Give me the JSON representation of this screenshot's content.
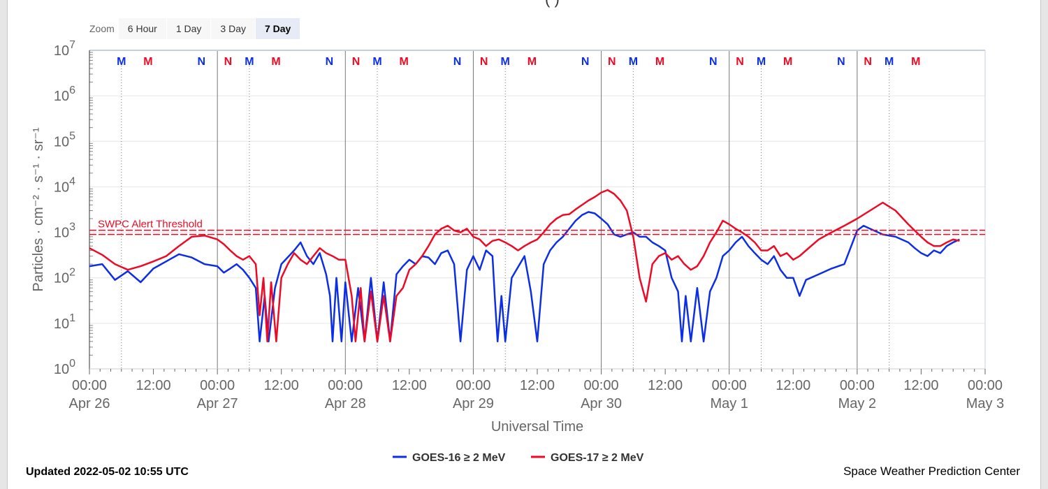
{
  "header": {
    "title_fragment": "( )"
  },
  "zoom": {
    "label": "Zoom",
    "buttons": [
      "6 Hour",
      "1 Day",
      "3 Day",
      "7 Day"
    ],
    "active": "7 Day"
  },
  "footer": {
    "updated": "Updated 2022-05-02 10:55 UTC",
    "credit": "Space Weather Prediction Center"
  },
  "colors": {
    "goes16": "#0b2ee6",
    "goes17": "#ee0a24",
    "grid": "#e6e6e6",
    "threshold": "#ee0a24"
  },
  "chart_data": {
    "type": "line",
    "xlabel": "Universal Time",
    "ylabel": "Particles · cm⁻² · s⁻¹ · sr⁻¹",
    "yscale": "log",
    "ylim": [
      1,
      10000000
    ],
    "y_ticks": [
      {
        "base": "10",
        "exp": "0"
      },
      {
        "base": "10",
        "exp": "1"
      },
      {
        "base": "10",
        "exp": "2"
      },
      {
        "base": "10",
        "exp": "3"
      },
      {
        "base": "10",
        "exp": "4"
      },
      {
        "base": "10",
        "exp": "5"
      },
      {
        "base": "10",
        "exp": "6"
      },
      {
        "base": "10",
        "exp": "7"
      }
    ],
    "xlim_days": [
      0,
      7
    ],
    "x_ticks": [
      {
        "time": "00:00",
        "date": "Apr 26"
      },
      {
        "time": "12:00",
        "date": ""
      },
      {
        "time": "00:00",
        "date": "Apr 27"
      },
      {
        "time": "12:00",
        "date": ""
      },
      {
        "time": "00:00",
        "date": "Apr 28"
      },
      {
        "time": "12:00",
        "date": ""
      },
      {
        "time": "00:00",
        "date": "Apr 29"
      },
      {
        "time": "12:00",
        "date": ""
      },
      {
        "time": "00:00",
        "date": "Apr 30"
      },
      {
        "time": "12:00",
        "date": ""
      },
      {
        "time": "00:00",
        "date": "May 1"
      },
      {
        "time": "12:00",
        "date": ""
      },
      {
        "time": "00:00",
        "date": "May 2"
      },
      {
        "time": "12:00",
        "date": ""
      },
      {
        "time": "00:00",
        "date": "May 3"
      }
    ],
    "threshold": {
      "label": "SWPC Alert Threshold",
      "value": 1000
    },
    "markers": {
      "m_dotted_offsets_hours": [
        6,
        6,
        6,
        6,
        6,
        6,
        6
      ],
      "entries": [
        {
          "day": 0,
          "hour": 6,
          "text": "M",
          "color": "goes16"
        },
        {
          "day": 0,
          "hour": 11,
          "text": "M",
          "color": "goes17"
        },
        {
          "day": 0,
          "hour": 21,
          "text": "N",
          "color": "goes16"
        },
        {
          "day": 1,
          "hour": 2,
          "text": "N",
          "color": "goes17"
        },
        {
          "day": 1,
          "hour": 6,
          "text": "M",
          "color": "goes16"
        },
        {
          "day": 1,
          "hour": 11,
          "text": "M",
          "color": "goes17"
        },
        {
          "day": 1,
          "hour": 21,
          "text": "N",
          "color": "goes16"
        },
        {
          "day": 2,
          "hour": 2,
          "text": "N",
          "color": "goes17"
        },
        {
          "day": 2,
          "hour": 6,
          "text": "M",
          "color": "goes16"
        },
        {
          "day": 2,
          "hour": 11,
          "text": "M",
          "color": "goes17"
        },
        {
          "day": 2,
          "hour": 21,
          "text": "N",
          "color": "goes16"
        },
        {
          "day": 3,
          "hour": 2,
          "text": "N",
          "color": "goes17"
        },
        {
          "day": 3,
          "hour": 6,
          "text": "M",
          "color": "goes16"
        },
        {
          "day": 3,
          "hour": 11,
          "text": "M",
          "color": "goes17"
        },
        {
          "day": 3,
          "hour": 21,
          "text": "N",
          "color": "goes16"
        },
        {
          "day": 4,
          "hour": 2,
          "text": "N",
          "color": "goes17"
        },
        {
          "day": 4,
          "hour": 6,
          "text": "M",
          "color": "goes16"
        },
        {
          "day": 4,
          "hour": 11,
          "text": "M",
          "color": "goes17"
        },
        {
          "day": 4,
          "hour": 21,
          "text": "N",
          "color": "goes16"
        },
        {
          "day": 5,
          "hour": 2,
          "text": "N",
          "color": "goes17"
        },
        {
          "day": 5,
          "hour": 6,
          "text": "M",
          "color": "goes16"
        },
        {
          "day": 5,
          "hour": 11,
          "text": "M",
          "color": "goes17"
        },
        {
          "day": 5,
          "hour": 21,
          "text": "N",
          "color": "goes16"
        },
        {
          "day": 6,
          "hour": 2,
          "text": "N",
          "color": "goes17"
        },
        {
          "day": 6,
          "hour": 6,
          "text": "M",
          "color": "goes16"
        },
        {
          "day": 6,
          "hour": 11,
          "text": "M",
          "color": "goes17"
        }
      ]
    },
    "legend_placement": "bottom-center",
    "series": [
      {
        "name": "GOES-16 ≥ 2 MeV",
        "color": "goes16",
        "points": [
          [
            0.0,
            180
          ],
          [
            0.1,
            200
          ],
          [
            0.2,
            90
          ],
          [
            0.3,
            140
          ],
          [
            0.4,
            80
          ],
          [
            0.5,
            160
          ],
          [
            0.6,
            230
          ],
          [
            0.7,
            330
          ],
          [
            0.8,
            280
          ],
          [
            0.9,
            200
          ],
          [
            1.0,
            180
          ],
          [
            1.05,
            130
          ],
          [
            1.1,
            160
          ],
          [
            1.15,
            200
          ],
          [
            1.2,
            150
          ],
          [
            1.25,
            100
          ],
          [
            1.3,
            60
          ],
          [
            1.33,
            4
          ],
          [
            1.37,
            40
          ],
          [
            1.4,
            4
          ],
          [
            1.45,
            60
          ],
          [
            1.5,
            200
          ],
          [
            1.6,
            400
          ],
          [
            1.65,
            600
          ],
          [
            1.7,
            300
          ],
          [
            1.75,
            200
          ],
          [
            1.8,
            350
          ],
          [
            1.85,
            120
          ],
          [
            1.88,
            40
          ],
          [
            1.9,
            4
          ],
          [
            1.93,
            100
          ],
          [
            1.97,
            4
          ],
          [
            2.0,
            80
          ],
          [
            2.05,
            4
          ],
          [
            2.1,
            60
          ],
          [
            2.15,
            4
          ],
          [
            2.2,
            100
          ],
          [
            2.25,
            4
          ],
          [
            2.3,
            80
          ],
          [
            2.35,
            4
          ],
          [
            2.4,
            120
          ],
          [
            2.45,
            180
          ],
          [
            2.5,
            250
          ],
          [
            2.55,
            200
          ],
          [
            2.6,
            300
          ],
          [
            2.65,
            280
          ],
          [
            2.7,
            200
          ],
          [
            2.75,
            350
          ],
          [
            2.8,
            400
          ],
          [
            2.85,
            200
          ],
          [
            2.9,
            4
          ],
          [
            2.95,
            150
          ],
          [
            3.0,
            300
          ],
          [
            3.05,
            150
          ],
          [
            3.1,
            400
          ],
          [
            3.15,
            300
          ],
          [
            3.17,
            30
          ],
          [
            3.19,
            4
          ],
          [
            3.22,
            40
          ],
          [
            3.25,
            4
          ],
          [
            3.3,
            100
          ],
          [
            3.4,
            300
          ],
          [
            3.45,
            50
          ],
          [
            3.5,
            4
          ],
          [
            3.55,
            200
          ],
          [
            3.6,
            400
          ],
          [
            3.65,
            600
          ],
          [
            3.7,
            800
          ],
          [
            3.75,
            1200
          ],
          [
            3.8,
            1800
          ],
          [
            3.85,
            2400
          ],
          [
            3.9,
            2800
          ],
          [
            3.95,
            2600
          ],
          [
            4.0,
            2000
          ],
          [
            4.05,
            1500
          ],
          [
            4.1,
            900
          ],
          [
            4.15,
            800
          ],
          [
            4.2,
            900
          ],
          [
            4.25,
            1000
          ],
          [
            4.3,
            800
          ],
          [
            4.35,
            800
          ],
          [
            4.4,
            600
          ],
          [
            4.45,
            500
          ],
          [
            4.5,
            400
          ],
          [
            4.55,
            100
          ],
          [
            4.6,
            50
          ],
          [
            4.63,
            4
          ],
          [
            4.66,
            40
          ],
          [
            4.7,
            4
          ],
          [
            4.75,
            60
          ],
          [
            4.8,
            4
          ],
          [
            4.85,
            50
          ],
          [
            4.9,
            100
          ],
          [
            4.95,
            300
          ],
          [
            5.0,
            400
          ],
          [
            5.05,
            600
          ],
          [
            5.1,
            800
          ],
          [
            5.15,
            500
          ],
          [
            5.2,
            350
          ],
          [
            5.25,
            250
          ],
          [
            5.3,
            200
          ],
          [
            5.35,
            300
          ],
          [
            5.4,
            150
          ],
          [
            5.45,
            100
          ],
          [
            5.5,
            100
          ],
          [
            5.55,
            40
          ],
          [
            5.6,
            90
          ],
          [
            5.7,
            120
          ],
          [
            5.8,
            160
          ],
          [
            5.9,
            200
          ],
          [
            6.0,
            1100
          ],
          [
            6.05,
            1400
          ],
          [
            6.1,
            1200
          ],
          [
            6.2,
            900
          ],
          [
            6.3,
            800
          ],
          [
            6.4,
            600
          ],
          [
            6.45,
            450
          ],
          [
            6.5,
            350
          ],
          [
            6.55,
            300
          ],
          [
            6.6,
            400
          ],
          [
            6.65,
            350
          ],
          [
            6.7,
            500
          ],
          [
            6.75,
            600
          ],
          [
            6.8,
            700
          ]
        ]
      },
      {
        "name": "GOES-17 ≥ 2 MeV",
        "color": "goes17",
        "points": [
          [
            0.0,
            450
          ],
          [
            0.1,
            320
          ],
          [
            0.2,
            200
          ],
          [
            0.3,
            150
          ],
          [
            0.4,
            180
          ],
          [
            0.5,
            230
          ],
          [
            0.6,
            300
          ],
          [
            0.7,
            500
          ],
          [
            0.8,
            800
          ],
          [
            0.9,
            850
          ],
          [
            1.0,
            700
          ],
          [
            1.05,
            550
          ],
          [
            1.1,
            400
          ],
          [
            1.15,
            300
          ],
          [
            1.2,
            250
          ],
          [
            1.25,
            300
          ],
          [
            1.3,
            200
          ],
          [
            1.33,
            15
          ],
          [
            1.36,
            100
          ],
          [
            1.39,
            4
          ],
          [
            1.42,
            80
          ],
          [
            1.46,
            4
          ],
          [
            1.5,
            100
          ],
          [
            1.55,
            200
          ],
          [
            1.6,
            350
          ],
          [
            1.65,
            250
          ],
          [
            1.7,
            200
          ],
          [
            1.75,
            300
          ],
          [
            1.8,
            450
          ],
          [
            1.85,
            350
          ],
          [
            1.9,
            300
          ],
          [
            1.95,
            250
          ],
          [
            2.0,
            250
          ],
          [
            2.05,
            40
          ],
          [
            2.08,
            4
          ],
          [
            2.12,
            60
          ],
          [
            2.15,
            4
          ],
          [
            2.2,
            50
          ],
          [
            2.25,
            4
          ],
          [
            2.3,
            40
          ],
          [
            2.35,
            4
          ],
          [
            2.4,
            40
          ],
          [
            2.45,
            60
          ],
          [
            2.5,
            150
          ],
          [
            2.55,
            200
          ],
          [
            2.6,
            300
          ],
          [
            2.65,
            500
          ],
          [
            2.7,
            900
          ],
          [
            2.75,
            1200
          ],
          [
            2.8,
            1400
          ],
          [
            2.85,
            1100
          ],
          [
            2.9,
            1000
          ],
          [
            2.95,
            1200
          ],
          [
            3.0,
            800
          ],
          [
            3.05,
            700
          ],
          [
            3.1,
            500
          ],
          [
            3.15,
            650
          ],
          [
            3.2,
            700
          ],
          [
            3.25,
            600
          ],
          [
            3.3,
            500
          ],
          [
            3.35,
            400
          ],
          [
            3.4,
            500
          ],
          [
            3.45,
            600
          ],
          [
            3.5,
            700
          ],
          [
            3.55,
            1000
          ],
          [
            3.6,
            1500
          ],
          [
            3.65,
            2000
          ],
          [
            3.7,
            2400
          ],
          [
            3.75,
            2500
          ],
          [
            3.8,
            3200
          ],
          [
            3.85,
            4000
          ],
          [
            3.9,
            5000
          ],
          [
            3.95,
            6000
          ],
          [
            4.0,
            7500
          ],
          [
            4.05,
            8500
          ],
          [
            4.1,
            7000
          ],
          [
            4.15,
            5000
          ],
          [
            4.2,
            3000
          ],
          [
            4.25,
            800
          ],
          [
            4.3,
            100
          ],
          [
            4.35,
            30
          ],
          [
            4.4,
            200
          ],
          [
            4.45,
            300
          ],
          [
            4.5,
            350
          ],
          [
            4.55,
            250
          ],
          [
            4.6,
            300
          ],
          [
            4.65,
            200
          ],
          [
            4.7,
            150
          ],
          [
            4.75,
            180
          ],
          [
            4.8,
            300
          ],
          [
            4.85,
            600
          ],
          [
            4.9,
            1000
          ],
          [
            4.95,
            1800
          ],
          [
            5.0,
            1500
          ],
          [
            5.05,
            1200
          ],
          [
            5.1,
            1000
          ],
          [
            5.15,
            800
          ],
          [
            5.2,
            600
          ],
          [
            5.25,
            400
          ],
          [
            5.3,
            400
          ],
          [
            5.35,
            500
          ],
          [
            5.4,
            300
          ],
          [
            5.45,
            350
          ],
          [
            5.5,
            250
          ],
          [
            5.55,
            300
          ],
          [
            5.6,
            400
          ],
          [
            5.7,
            700
          ],
          [
            5.8,
            1000
          ],
          [
            5.9,
            1400
          ],
          [
            6.0,
            2000
          ],
          [
            6.1,
            3000
          ],
          [
            6.2,
            4500
          ],
          [
            6.3,
            3000
          ],
          [
            6.4,
            1500
          ],
          [
            6.5,
            800
          ],
          [
            6.55,
            600
          ],
          [
            6.6,
            500
          ],
          [
            6.65,
            500
          ],
          [
            6.7,
            600
          ],
          [
            6.75,
            700
          ],
          [
            6.8,
            650
          ]
        ]
      }
    ]
  }
}
